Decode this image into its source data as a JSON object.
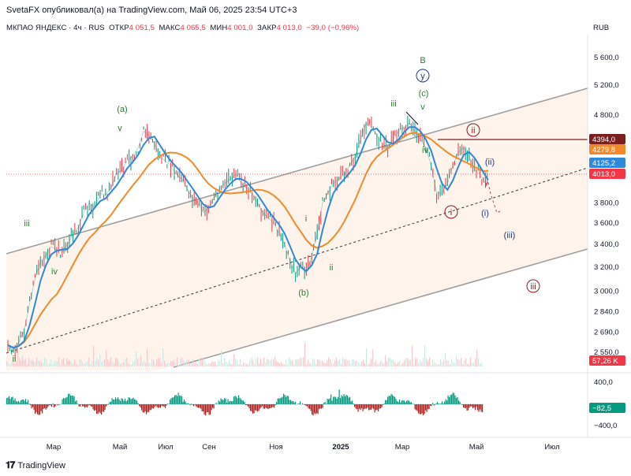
{
  "header": {
    "published": "SvetaFX опубликовал(а) на TradingView.com, Май 06, 2025 23:54 UTC+3"
  },
  "legend": {
    "symbol": "МКПАО ЯНДЕКС · 4ч · RUS",
    "open_label": "ОТКР",
    "open": "4 051,5",
    "high_label": "МАКС",
    "high": "4 065,5",
    "low_label": "МИН",
    "low": "4 001,0",
    "close_label": "ЗАКР",
    "close": "4 013,0",
    "change": "−39,0 (−0,96%)"
  },
  "currency": "RUB",
  "footer": {
    "logo_text": "TradingView",
    "logo_mark": "𝟏𝟕"
  },
  "chart_data": {
    "type": "line",
    "title": "МКПАО ЯНДЕКС · 4ч · RUS",
    "x_axis": {
      "ticks": [
        "Мар",
        "Май",
        "Июл",
        "Сен",
        "Ноя",
        "2025",
        "Мар",
        "Май",
        "Июл"
      ]
    },
    "y_axis": {
      "scale": "log",
      "ylim": [
        2450,
        5950
      ],
      "ticks": [
        "5 600,0",
        "5 200,0",
        "4 800,0",
        "3 800,0",
        "3 600,0",
        "3 400,0",
        "3 200,0",
        "3 000,0",
        "2 840,0",
        "2 690,0",
        "2 550,0"
      ]
    },
    "series": [
      {
        "name": "",
        "kind": "price",
        "color": "#089981",
        "points": [
          [
            0,
            2600
          ],
          [
            4,
            2560
          ],
          [
            8,
            2620
          ],
          [
            12,
            2700
          ],
          [
            16,
            2900
          ],
          [
            20,
            3100
          ],
          [
            24,
            3250
          ],
          [
            28,
            3300
          ],
          [
            32,
            3380
          ],
          [
            36,
            3350
          ],
          [
            40,
            3330
          ],
          [
            44,
            3400
          ],
          [
            48,
            3500
          ],
          [
            52,
            3560
          ],
          [
            56,
            3700
          ],
          [
            60,
            3800
          ],
          [
            64,
            3750
          ],
          [
            68,
            3900
          ],
          [
            72,
            3880
          ],
          [
            76,
            3950
          ],
          [
            80,
            4100
          ],
          [
            84,
            4150
          ],
          [
            88,
            4250
          ],
          [
            92,
            4300
          ],
          [
            96,
            4400
          ],
          [
            100,
            4600
          ],
          [
            104,
            4550
          ],
          [
            108,
            4450
          ],
          [
            112,
            4300
          ],
          [
            116,
            4250
          ],
          [
            120,
            4200
          ],
          [
            124,
            4100
          ],
          [
            128,
            4050
          ],
          [
            132,
            3950
          ],
          [
            136,
            3850
          ],
          [
            140,
            3800
          ],
          [
            144,
            3700
          ],
          [
            148,
            3750
          ],
          [
            152,
            3850
          ],
          [
            156,
            3950
          ],
          [
            160,
            4000
          ],
          [
            164,
            4050
          ],
          [
            168,
            4100
          ],
          [
            172,
            4000
          ],
          [
            176,
            3950
          ],
          [
            180,
            3900
          ],
          [
            184,
            3800
          ],
          [
            188,
            3700
          ],
          [
            192,
            3650
          ],
          [
            196,
            3600
          ],
          [
            200,
            3500
          ],
          [
            204,
            3400
          ],
          [
            208,
            3250
          ],
          [
            212,
            3150
          ],
          [
            216,
            3200
          ],
          [
            220,
            3150
          ],
          [
            224,
            3300
          ],
          [
            228,
            3500
          ],
          [
            232,
            3800
          ],
          [
            236,
            3900
          ],
          [
            240,
            4000
          ],
          [
            244,
            4050
          ],
          [
            248,
            4100
          ],
          [
            252,
            4200
          ],
          [
            256,
            4300
          ],
          [
            260,
            4500
          ],
          [
            264,
            4700
          ],
          [
            268,
            4650
          ],
          [
            272,
            4550
          ],
          [
            276,
            4450
          ],
          [
            280,
            4400
          ],
          [
            284,
            4500
          ],
          [
            288,
            4600
          ],
          [
            292,
            4650
          ],
          [
            296,
            4700
          ],
          [
            300,
            4600
          ],
          [
            304,
            4500
          ],
          [
            308,
            4400
          ],
          [
            312,
            4200
          ],
          [
            316,
            3900
          ],
          [
            320,
            3900
          ],
          [
            324,
            4000
          ],
          [
            328,
            4200
          ],
          [
            332,
            4350
          ],
          [
            336,
            4400
          ],
          [
            340,
            4300
          ],
          [
            344,
            4150
          ],
          [
            348,
            4100
          ],
          [
            352,
            4000
          ],
          [
            354,
            4013
          ]
        ]
      },
      {
        "name": "",
        "kind": "ma_fast",
        "color": "#2e8ad8"
      },
      {
        "name": "",
        "kind": "ma_slow",
        "color": "#f28a2b"
      }
    ],
    "price_tags": [
      {
        "value": "4394,0",
        "color": "#7a1f1f"
      },
      {
        "value": "4279,8",
        "color": "#f28a2b"
      },
      {
        "value": "4125,2",
        "color": "#2e8ad8"
      },
      {
        "value": "4013,0",
        "color": "#f23645"
      },
      {
        "value": "57,26 K",
        "color": "#f23645"
      }
    ],
    "wave_labels": [
      {
        "text": "B",
        "color": "#2e7d32"
      },
      {
        "text": "y",
        "color": "#1e3a8a",
        "circled": true
      },
      {
        "text": "(c)",
        "color": "#2e7d32"
      },
      {
        "text": "v",
        "color": "#2e7d32"
      },
      {
        "text": "iii",
        "color": "#2e7d32"
      },
      {
        "text": "iv",
        "color": "#2e7d32"
      },
      {
        "text": "(a)",
        "color": "#2e7d32"
      },
      {
        "text": "v",
        "color": "#2e7d32"
      },
      {
        "text": "iii",
        "color": "#2e7d32"
      },
      {
        "text": "iv",
        "color": "#2e7d32"
      },
      {
        "text": "ii",
        "color": "#2e7d32"
      },
      {
        "text": "(b)",
        "color": "#2e7d32"
      },
      {
        "text": "i",
        "color": "#2e7d32"
      },
      {
        "text": "ii",
        "color": "#2e7d32"
      },
      {
        "text": "ii",
        "color": "#8b1a1a",
        "circled": true
      },
      {
        "text": "i",
        "color": "#8b1a1a",
        "circled": true
      },
      {
        "text": "iii",
        "color": "#8b1a1a",
        "circled": true
      },
      {
        "text": "(ii)",
        "color": "#1e3a8a"
      },
      {
        "text": "(i)",
        "color": "#1e3a8a"
      },
      {
        "text": "(iii)",
        "color": "#1e3a8a"
      }
    ],
    "oscillator": {
      "ticks": [
        "400,0",
        "−400,0"
      ],
      "last_value": "−82,5",
      "last_color": "#089981"
    }
  }
}
